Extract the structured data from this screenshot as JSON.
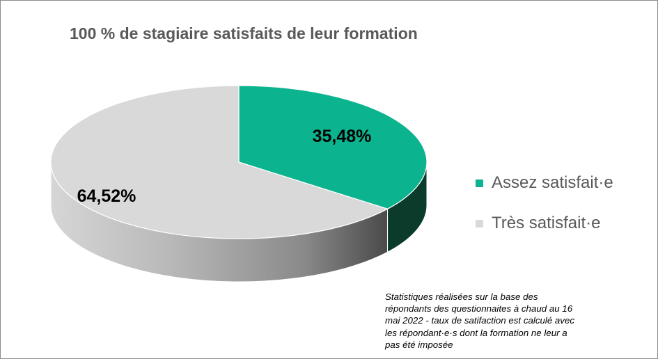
{
  "colors": {
    "assez_top": "#0bb38f",
    "assez_side_dark": "#0a3b2b",
    "tres_top": "#d9d9d9",
    "tres_side_light": "#c4c4c4",
    "tres_side_dark": "#4f4f4f",
    "title_text": "#595959"
  },
  "chart_data": {
    "type": "pie",
    "style": "3d",
    "title": "100 % de stagiaire satisfaits de leur formation",
    "slices": [
      {
        "label": "Assez satisfait·e",
        "value": 35.48,
        "data_label": "35,48%",
        "color": "#0bb38f"
      },
      {
        "label": "Très satisfait·e",
        "value": 64.52,
        "data_label": "64,52%",
        "color": "#d9d9d9"
      }
    ],
    "legend_position": "right"
  },
  "note": {
    "lines": [
      "Statistiques réalisées sur la base des",
      "répondants des questionnaites à chaud au 16",
      "mai 2022 -  taux de satifaction est calculé avec",
      "les répondant·e·s dont la formation ne leur a",
      "pas été imposée"
    ]
  }
}
